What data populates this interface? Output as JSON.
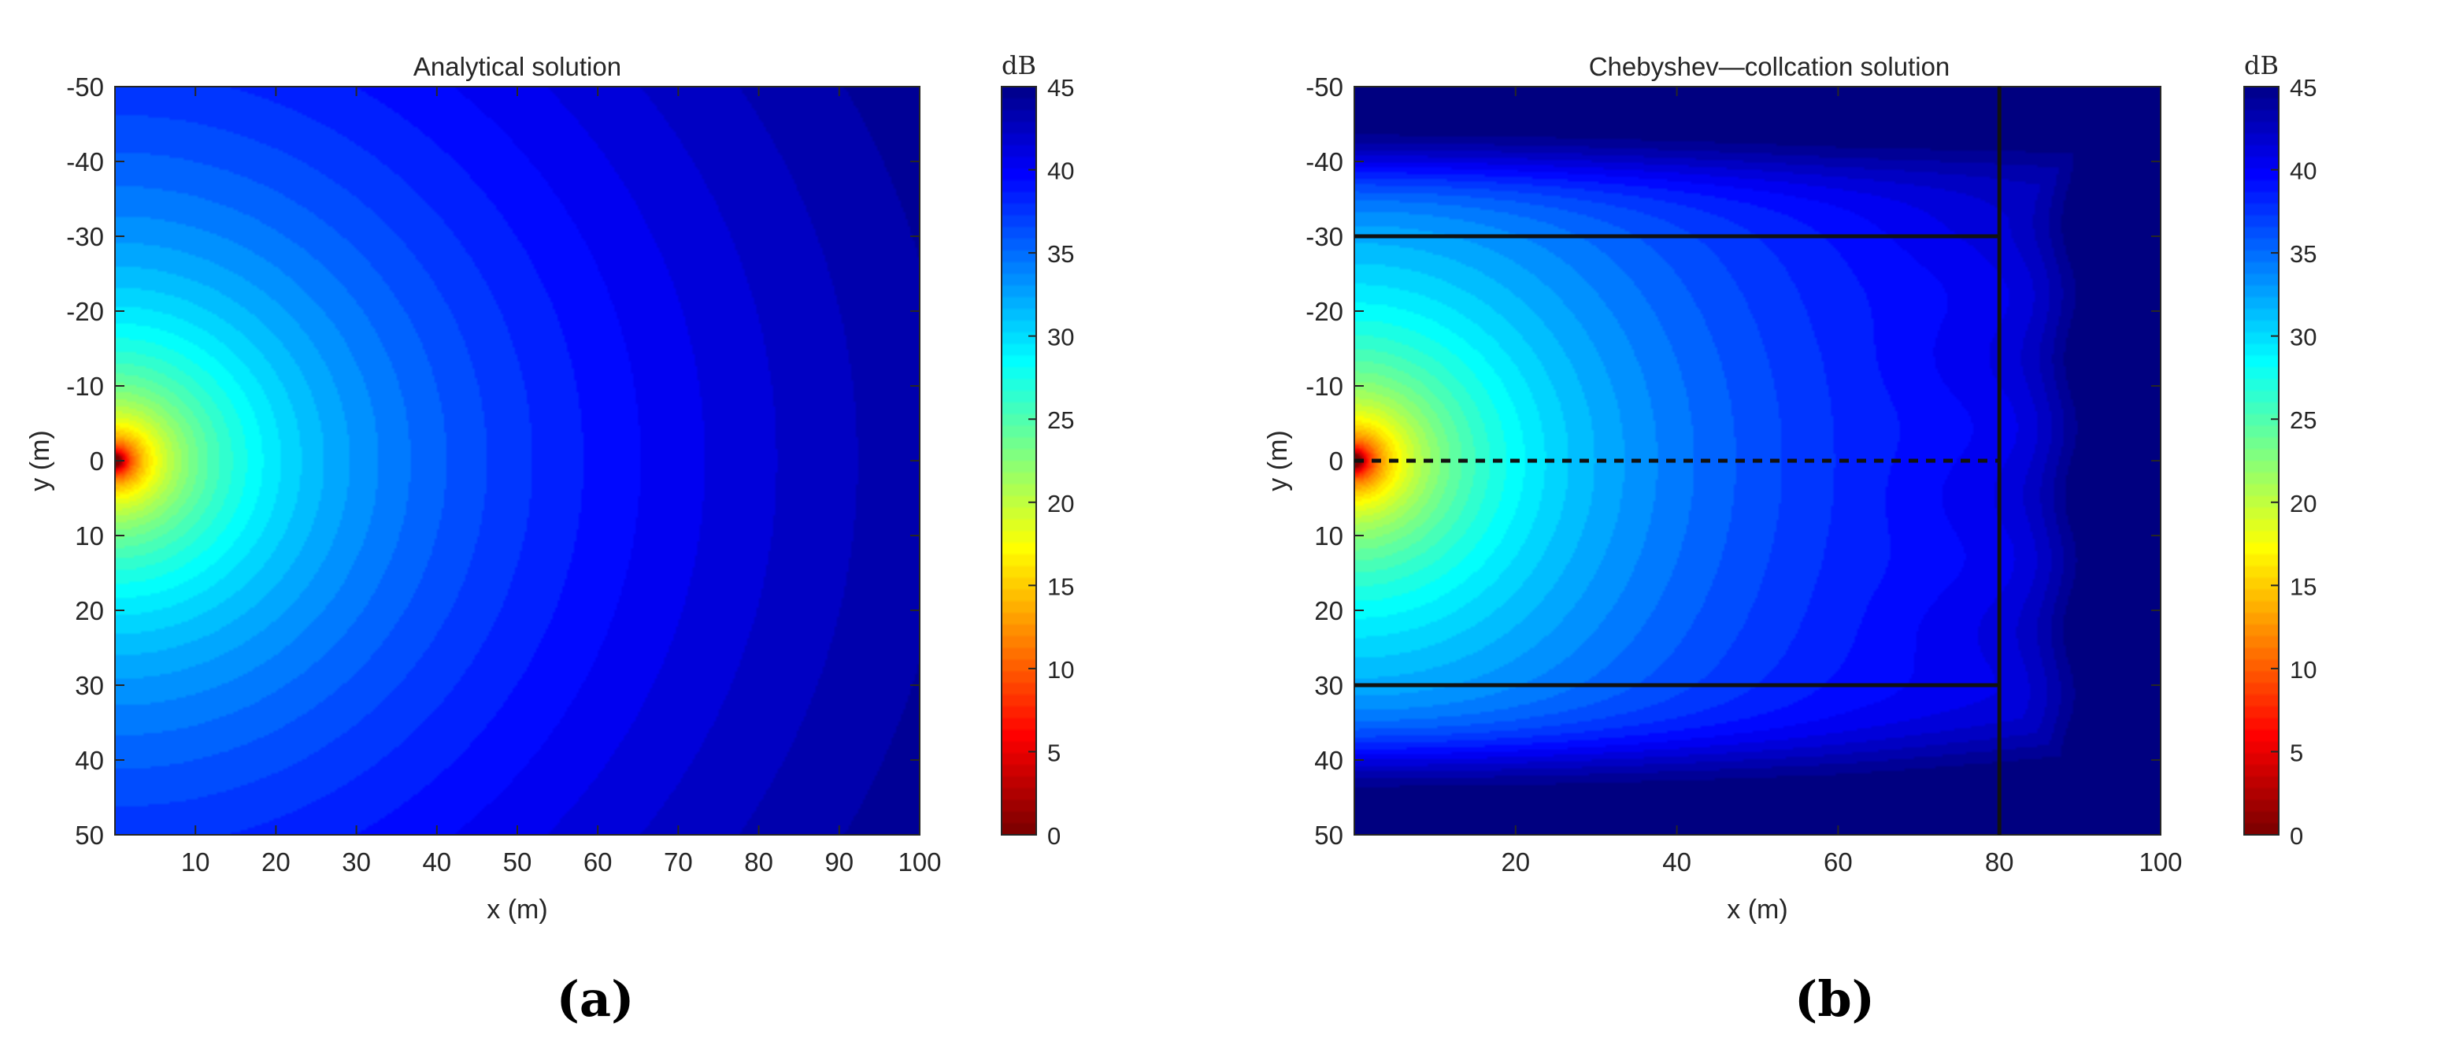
{
  "chart_data": [
    {
      "type": "heatmap",
      "panel_label": "(a)",
      "title": "Analytical solution",
      "xlabel": "x (m)",
      "ylabel": "y (m)",
      "xlim": [
        0,
        100
      ],
      "ylim": [
        -50,
        50
      ],
      "y_reversed": true,
      "xticks": [
        10,
        20,
        30,
        40,
        50,
        60,
        70,
        80,
        90,
        100
      ],
      "yticks": [
        -50,
        -40,
        -30,
        -20,
        -10,
        0,
        10,
        20,
        30,
        40,
        50
      ],
      "colorbar": {
        "label": "dB",
        "range": [
          0,
          45
        ],
        "ticks": [
          0,
          5,
          10,
          15,
          20,
          25,
          30,
          35,
          40,
          45
        ],
        "colormap": "jet-reversed"
      },
      "source": {
        "x": 0,
        "y": 0
      },
      "field": "radial",
      "lines": []
    },
    {
      "type": "heatmap",
      "panel_label": "(b)",
      "title": "Chebyshev—collcation solution",
      "xlabel": "x (m)",
      "ylabel": "y (m)",
      "xlim": [
        0,
        100
      ],
      "ylim": [
        -50,
        50
      ],
      "y_reversed": true,
      "xticks": [
        20,
        40,
        60,
        80,
        100
      ],
      "yticks": [
        -50,
        -40,
        -30,
        -20,
        -10,
        0,
        10,
        20,
        30,
        40,
        50
      ],
      "colorbar": {
        "label": "dB",
        "range": [
          0,
          45
        ],
        "ticks": [
          0,
          5,
          10,
          15,
          20,
          25,
          30,
          35,
          40,
          45
        ],
        "colormap": "jet-reversed"
      },
      "source": {
        "x": 0,
        "y": 0
      },
      "field": "waveguide",
      "lines": [
        {
          "style": "solid",
          "x": [
            0,
            80
          ],
          "y": [
            -30,
            -30
          ]
        },
        {
          "style": "solid",
          "x": [
            0,
            80
          ],
          "y": [
            30,
            30
          ]
        },
        {
          "style": "dashed",
          "x": [
            0,
            80
          ],
          "y": [
            0,
            0
          ]
        },
        {
          "style": "solid",
          "x": [
            80,
            80
          ],
          "y": [
            -50,
            50
          ]
        }
      ]
    }
  ]
}
